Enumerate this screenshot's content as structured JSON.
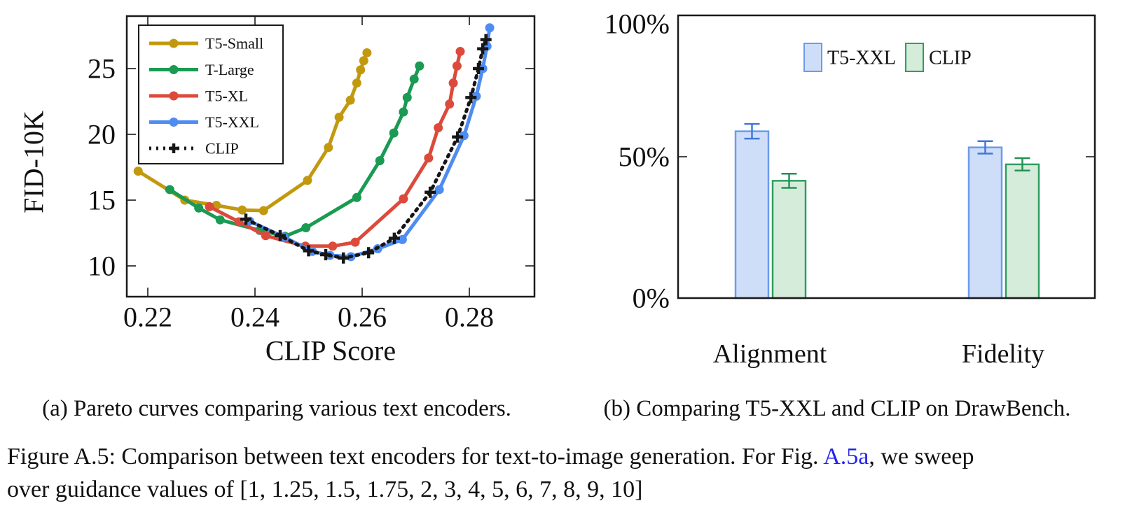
{
  "page": {
    "background": "#ffffff",
    "text_color": "#111111"
  },
  "captions": {
    "sub_a": "(a) Pareto curves comparing various text encoders.",
    "sub_b": "(b) Comparing T5-XXL and CLIP on DrawBench.",
    "figure_prefix": "Figure A.5: Comparison between text encoders for text-to-image generation. For Fig. ",
    "figure_link": "A.5a",
    "figure_suffix": ", we sweep",
    "figure_line2": "over guidance values of [1, 1.25, 1.5, 1.75, 2, 3, 4, 5, 6, 7, 8, 9, 10]",
    "link_color": "#2222ee"
  },
  "chart_data": [
    {
      "type": "line",
      "title": "",
      "xlabel": "CLIP Score",
      "ylabel": "FID-10K",
      "xlim": [
        0.2161,
        0.2922
      ],
      "ylim": [
        7.7,
        29.0
      ],
      "xticks": [
        {
          "v": 0.22,
          "label": "0.22"
        },
        {
          "v": 0.24,
          "label": "0.24"
        },
        {
          "v": 0.26,
          "label": "0.26"
        },
        {
          "v": 0.28,
          "label": "0.28"
        }
      ],
      "yticks": [
        {
          "v": 10,
          "label": "10"
        },
        {
          "v": 15,
          "label": "15"
        },
        {
          "v": 20,
          "label": "20"
        },
        {
          "v": 25,
          "label": "25"
        }
      ],
      "grid": false,
      "legend_position": "top-left",
      "guidance_sweep": [
        1,
        1.25,
        1.5,
        1.75,
        2,
        3,
        4,
        5,
        6,
        7,
        8,
        9,
        10
      ],
      "series": [
        {
          "name": "T5-Small",
          "color": "#c2990e",
          "style": "solid",
          "marker": "circle",
          "points": [
            [
              0.2182,
              17.2
            ],
            [
              0.2269,
              15.0
            ],
            [
              0.2328,
              14.6
            ],
            [
              0.2376,
              14.25
            ],
            [
              0.2416,
              14.2
            ],
            [
              0.2498,
              16.5
            ],
            [
              0.2537,
              19.0
            ],
            [
              0.2557,
              21.3
            ],
            [
              0.2578,
              22.6
            ],
            [
              0.259,
              23.9
            ],
            [
              0.2597,
              24.9
            ],
            [
              0.2603,
              25.6
            ],
            [
              0.2609,
              26.2
            ]
          ]
        },
        {
          "name": "T-Large",
          "color": "#1a9a52",
          "style": "solid",
          "marker": "circle",
          "points": [
            [
              0.2241,
              15.8
            ],
            [
              0.2295,
              14.4
            ],
            [
              0.2335,
              13.5
            ],
            [
              0.2409,
              12.7
            ],
            [
              0.2456,
              12.25
            ],
            [
              0.2495,
              12.9
            ],
            [
              0.259,
              15.2
            ],
            [
              0.2633,
              18.0
            ],
            [
              0.2659,
              20.1
            ],
            [
              0.2677,
              21.7
            ],
            [
              0.2684,
              22.8
            ],
            [
              0.2697,
              24.2
            ],
            [
              0.2707,
              25.2
            ]
          ]
        },
        {
          "name": "T5-XL",
          "color": "#dc4a3c",
          "style": "solid",
          "marker": "circle",
          "points": [
            [
              0.2315,
              14.5
            ],
            [
              0.237,
              13.35
            ],
            [
              0.242,
              12.3
            ],
            [
              0.2494,
              11.5
            ],
            [
              0.2545,
              11.5
            ],
            [
              0.2587,
              11.8
            ],
            [
              0.2677,
              15.1
            ],
            [
              0.2724,
              18.2
            ],
            [
              0.2742,
              20.5
            ],
            [
              0.2763,
              22.3
            ],
            [
              0.277,
              23.9
            ],
            [
              0.2777,
              25.2
            ],
            [
              0.2783,
              26.3
            ]
          ]
        },
        {
          "name": "T5-XXL",
          "color": "#4e8cf2",
          "style": "solid",
          "marker": "circle",
          "points": [
            [
              0.239,
              13.4
            ],
            [
              0.2454,
              12.2
            ],
            [
              0.2507,
              11.1
            ],
            [
              0.254,
              10.8
            ],
            [
              0.2579,
              10.7
            ],
            [
              0.2629,
              11.3
            ],
            [
              0.2675,
              12.0
            ],
            [
              0.2744,
              15.8
            ],
            [
              0.279,
              19.9
            ],
            [
              0.2813,
              22.9
            ],
            [
              0.2825,
              25.0
            ],
            [
              0.2833,
              26.7
            ],
            [
              0.2838,
              28.1
            ]
          ]
        },
        {
          "name": "CLIP",
          "color": "#161616",
          "style": "dotted",
          "marker": "plus",
          "points": [
            [
              0.2383,
              13.55
            ],
            [
              0.2447,
              12.3
            ],
            [
              0.25,
              11.15
            ],
            [
              0.2532,
              10.85
            ],
            [
              0.2565,
              10.6
            ],
            [
              0.2612,
              11.0
            ],
            [
              0.266,
              12.1
            ],
            [
              0.2727,
              15.6
            ],
            [
              0.2778,
              19.8
            ],
            [
              0.2803,
              22.8
            ],
            [
              0.2817,
              25.0
            ],
            [
              0.2825,
              26.5
            ],
            [
              0.2831,
              27.2
            ]
          ]
        }
      ]
    },
    {
      "type": "bar",
      "title": "",
      "categories": [
        "Alignment",
        "Fidelity"
      ],
      "ylim": [
        0,
        100
      ],
      "yticks": [
        {
          "v": 0,
          "label": "0%"
        },
        {
          "v": 50,
          "label": "50%"
        },
        {
          "v": 100,
          "label": "100%"
        }
      ],
      "grid": false,
      "legend_position": "top-center",
      "series": [
        {
          "name": "T5-XXL",
          "fill": "#cfdef8",
          "stroke": "#6c9bec",
          "error_color": "#3f78dd",
          "values": [
            59.0,
            53.3
          ],
          "errors": [
            2.6,
            2.2
          ]
        },
        {
          "name": "CLIP",
          "fill": "#d6ecda",
          "stroke": "#2f9e61",
          "error_color": "#259155",
          "values": [
            41.5,
            47.3
          ],
          "errors": [
            2.5,
            2.2
          ]
        }
      ]
    }
  ]
}
